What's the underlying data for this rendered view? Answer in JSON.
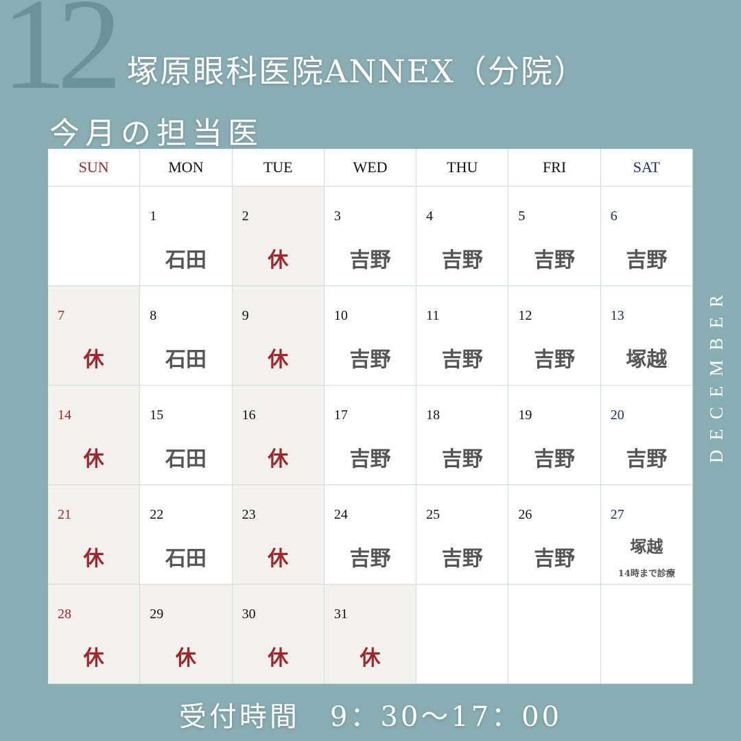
{
  "month_number": "12",
  "title": "塚原眼科医院ANNEX（分院）",
  "subtitle": "今月の担当医",
  "month_name": "DECEMBER",
  "hours": "受付時間　9：30〜17：00",
  "colors": {
    "background": "#88adb3",
    "sunday": "#a0262a",
    "saturday": "#1f2a7a",
    "closed_cell": "#f3f1ee",
    "doctor_text": "#555555"
  },
  "weekdays": [
    "SUN",
    "MON",
    "TUE",
    "WED",
    "THU",
    "FRI",
    "SAT"
  ],
  "weeks": [
    [
      {
        "day": "",
        "doctor": ""
      },
      {
        "day": "1",
        "doctor": "石田"
      },
      {
        "day": "2",
        "doctor": "休",
        "closed": true
      },
      {
        "day": "3",
        "doctor": "吉野"
      },
      {
        "day": "4",
        "doctor": "吉野"
      },
      {
        "day": "5",
        "doctor": "吉野"
      },
      {
        "day": "6",
        "doctor": "吉野"
      }
    ],
    [
      {
        "day": "7",
        "doctor": "休",
        "closed": true
      },
      {
        "day": "8",
        "doctor": "石田"
      },
      {
        "day": "9",
        "doctor": "休",
        "closed": true
      },
      {
        "day": "10",
        "doctor": "吉野"
      },
      {
        "day": "11",
        "doctor": "吉野"
      },
      {
        "day": "12",
        "doctor": "吉野"
      },
      {
        "day": "13",
        "doctor": "塚越"
      }
    ],
    [
      {
        "day": "14",
        "doctor": "休",
        "closed": true
      },
      {
        "day": "15",
        "doctor": "石田"
      },
      {
        "day": "16",
        "doctor": "休",
        "closed": true
      },
      {
        "day": "17",
        "doctor": "吉野"
      },
      {
        "day": "18",
        "doctor": "吉野"
      },
      {
        "day": "19",
        "doctor": "吉野"
      },
      {
        "day": "20",
        "doctor": "吉野"
      }
    ],
    [
      {
        "day": "21",
        "doctor": "休",
        "closed": true
      },
      {
        "day": "22",
        "doctor": "石田"
      },
      {
        "day": "23",
        "doctor": "休",
        "closed": true
      },
      {
        "day": "24",
        "doctor": "吉野"
      },
      {
        "day": "25",
        "doctor": "吉野"
      },
      {
        "day": "26",
        "doctor": "吉野"
      },
      {
        "day": "27",
        "doctor": "塚越",
        "note": "14時まで診療"
      }
    ],
    [
      {
        "day": "28",
        "doctor": "休",
        "closed": true
      },
      {
        "day": "29",
        "doctor": "休",
        "closed": true
      },
      {
        "day": "30",
        "doctor": "休",
        "closed": true
      },
      {
        "day": "31",
        "doctor": "休",
        "closed": true
      },
      {
        "day": "",
        "doctor": ""
      },
      {
        "day": "",
        "doctor": ""
      },
      {
        "day": "",
        "doctor": ""
      }
    ]
  ]
}
